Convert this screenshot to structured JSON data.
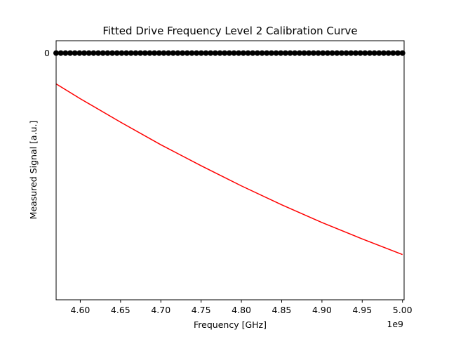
{
  "chart_data": {
    "type": "scatter",
    "title": "Fitted Drive Frequency Level 2 Calibration Curve",
    "xlabel": "Frequency [GHz]",
    "ylabel": "Measured Signal [a.u.]",
    "x_offset_label": "1e9",
    "xlim": [
      4570000000.0,
      5002000000.0
    ],
    "ylim": [
      -0.6,
      0.03
    ],
    "x_ticks": [
      4600000000.0,
      4650000000.0,
      4700000000.0,
      4750000000.0,
      4800000000.0,
      4850000000.0,
      4900000000.0,
      4950000000.0,
      5000000000.0
    ],
    "x_tick_labels": [
      "4.60",
      "4.65",
      "4.70",
      "4.75",
      "4.80",
      "4.85",
      "4.90",
      "4.95",
      "5.00"
    ],
    "y_ticks": [
      0
    ],
    "y_tick_labels": [
      "0"
    ],
    "grid": false,
    "series": [
      {
        "kind": "scatter",
        "color": "#000000",
        "x_start": 4570000000.0,
        "x_end": 5000000000.0,
        "count": 75,
        "y_constant": 0
      },
      {
        "kind": "line",
        "color": "#ff0000",
        "x": [
          4570000000.0,
          4600000000.0,
          4650000000.0,
          4700000000.0,
          4750000000.0,
          4800000000.0,
          4850000000.0,
          4900000000.0,
          4950000000.0,
          5000000000.0
        ],
        "y": [
          -0.075,
          -0.111,
          -0.168,
          -0.223,
          -0.274,
          -0.323,
          -0.369,
          -0.412,
          -0.452,
          -0.49
        ]
      }
    ]
  }
}
